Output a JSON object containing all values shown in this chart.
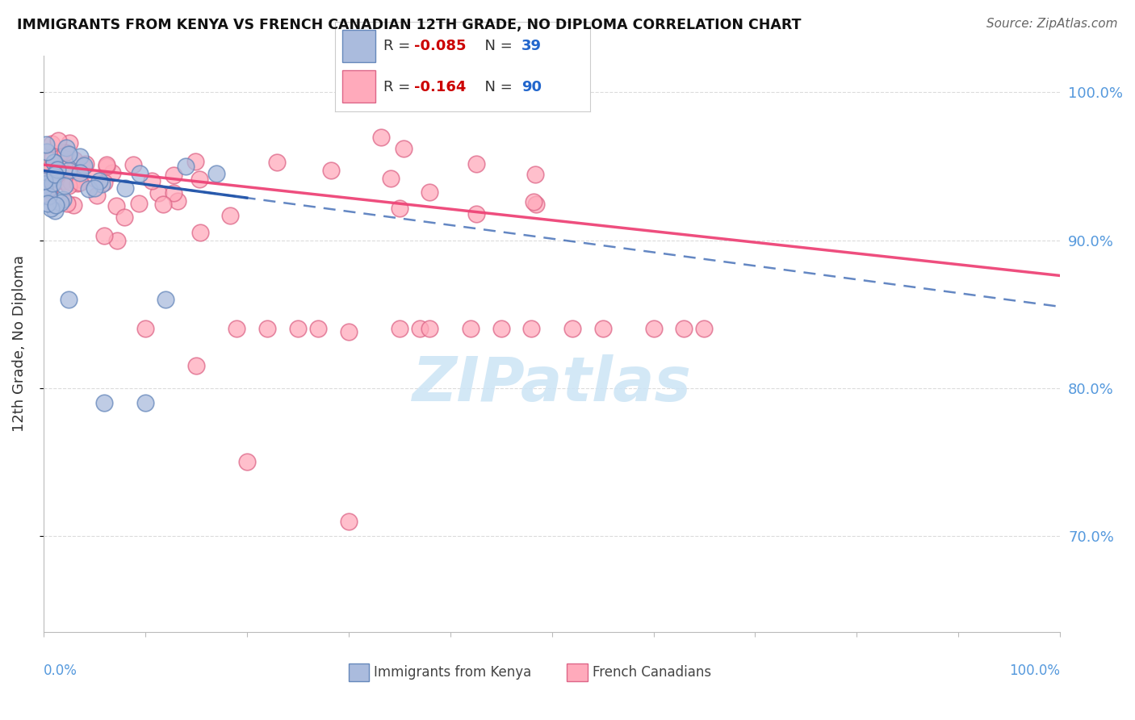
{
  "title": "IMMIGRANTS FROM KENYA VS FRENCH CANADIAN 12TH GRADE, NO DIPLOMA CORRELATION CHART",
  "source": "Source: ZipAtlas.com",
  "ylabel": "12th Grade, No Diploma",
  "blue_color": "#aabbdd",
  "blue_edge_color": "#6688bb",
  "pink_color": "#ffaabb",
  "pink_edge_color": "#dd6688",
  "blue_line_color": "#2255aa",
  "pink_line_color": "#ee4477",
  "ytick_vals": [
    0.7,
    0.8,
    0.9,
    1.0
  ],
  "xlim": [
    0.0,
    1.0
  ],
  "ylim": [
    0.635,
    1.025
  ],
  "watermark_color": "#cce4f5",
  "grid_color": "#cccccc",
  "right_label_color": "#5599dd",
  "legend_r_color": "#cc0000",
  "legend_n_color": "#2266cc",
  "kenya_n": 39,
  "french_n": 90,
  "kenya_r": -0.085,
  "french_r": -0.164
}
